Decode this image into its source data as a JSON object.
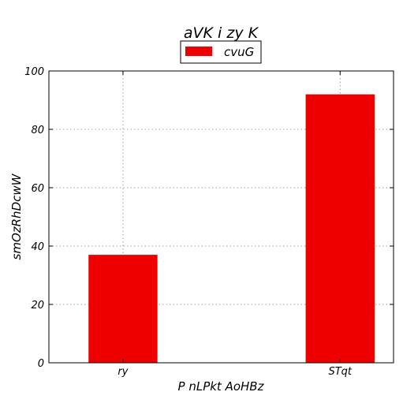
{
  "chart_data": {
    "type": "bar",
    "title": "aVK  i  zy K",
    "xlabel": "P nLPkt AoHBz",
    "ylabel": "smOzRhDcwW",
    "categories": [
      "ry",
      "STqt"
    ],
    "series": [
      {
        "name": "cvuG",
        "values": [
          37,
          92
        ],
        "color": "#ee0000"
      }
    ],
    "ylim": [
      0,
      100
    ],
    "yticks": [
      0,
      20,
      40,
      60,
      80,
      100
    ],
    "grid": true,
    "legend": "top-center"
  }
}
